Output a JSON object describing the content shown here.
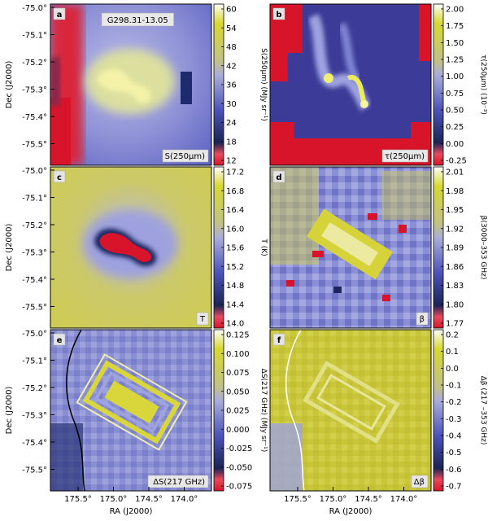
{
  "figure": {
    "source_label": "G298.31-13.05",
    "xlabel": "RA (J2000)",
    "ylabel": "Dec (J2000)"
  },
  "chart_data": [
    {
      "type": "heatmap",
      "panel": "a",
      "label": "S(250µm)",
      "colorbar_label": "S(250µm) (MJy sr⁻¹)",
      "colorbar_ticks": [
        "60",
        "54",
        "48",
        "42",
        "36",
        "30",
        "24",
        "18",
        "12"
      ],
      "yticks": [
        "-75.0°",
        "-75.1°",
        "-75.2°",
        "-75.3°",
        "-75.4°",
        "-75.5°"
      ],
      "xticks": []
    },
    {
      "type": "heatmap",
      "panel": "b",
      "label": "τ(250µm)",
      "colorbar_label": "τ(250µm) (10⁻³)",
      "colorbar_ticks": [
        "2.00",
        "1.75",
        "1.50",
        "1.25",
        "1.00",
        "0.75",
        "0.50",
        "0.25",
        "0.00",
        "-0.25"
      ],
      "yticks": [],
      "xticks": []
    },
    {
      "type": "heatmap",
      "panel": "c",
      "label": "T",
      "colorbar_label": "T (K)",
      "colorbar_ticks": [
        "17.2",
        "16.8",
        "16.4",
        "16.0",
        "15.6",
        "15.2",
        "14.8",
        "14.4",
        "14.0"
      ],
      "yticks": [
        "-75.0°",
        "-75.1°",
        "-75.2°",
        "-75.3°",
        "-75.4°",
        "-75.5°"
      ],
      "xticks": []
    },
    {
      "type": "heatmap",
      "panel": "d",
      "label": "β",
      "colorbar_label": "β(3000–353 GHz)",
      "colorbar_ticks": [
        "2.01",
        "1.98",
        "1.95",
        "1.92",
        "1.89",
        "1.86",
        "1.83",
        "1.80",
        "1.77"
      ],
      "yticks": [],
      "xticks": []
    },
    {
      "type": "heatmap",
      "panel": "e",
      "label": "ΔS(217 GHz)",
      "colorbar_label": "ΔS(217 GHz) (MJy sr⁻¹)",
      "colorbar_ticks": [
        "0.125",
        "0.100",
        "0.075",
        "0.050",
        "0.025",
        "0.000",
        "-0.025",
        "-0.050",
        "-0.075"
      ],
      "yticks": [
        "-75.0°",
        "-75.1°",
        "-75.2°",
        "-75.3°",
        "-75.4°",
        "-75.5°"
      ],
      "xticks": [
        "175.5°",
        "175.0°",
        "174.5°",
        "174.0°"
      ]
    },
    {
      "type": "heatmap",
      "panel": "f",
      "label": "Δβ",
      "colorbar_label": "Δβ (217 –353 GHz)",
      "colorbar_ticks": [
        "0.2",
        "0.1",
        "0.0",
        "-0.1",
        "-0.2",
        "-0.3",
        "-0.4",
        "-0.5",
        "-0.6",
        "-0.7"
      ],
      "yticks": [],
      "xticks": [
        "175.5°",
        "175.0°",
        "174.5°",
        "174.0°"
      ]
    }
  ]
}
